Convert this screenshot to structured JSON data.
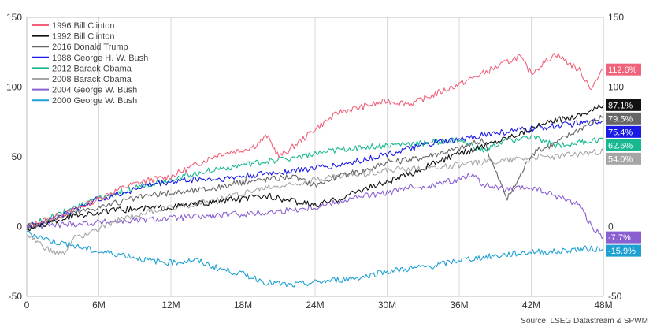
{
  "chart_data": {
    "type": "line",
    "title": "",
    "xlabel": "",
    "ylabel": "",
    "x_ticks": [
      "0",
      "6M",
      "12M",
      "18M",
      "24M",
      "30M",
      "36M",
      "42M",
      "48M"
    ],
    "xlim": [
      0,
      48
    ],
    "ylim": [
      -50,
      150
    ],
    "y_ticks": [
      -50,
      0,
      50,
      100,
      150
    ],
    "grid": "vertical",
    "legend_position": "top-left",
    "source": "Source: LSEG Datastream & SPWM",
    "series": [
      {
        "name": "1996 Bill Clinton",
        "color": "#f0627a",
        "end_label": "112.6%",
        "points": [
          [
            0,
            0
          ],
          [
            2,
            6
          ],
          [
            4,
            12
          ],
          [
            6,
            20
          ],
          [
            8,
            28
          ],
          [
            10,
            33
          ],
          [
            12,
            36
          ],
          [
            14,
            44
          ],
          [
            16,
            52
          ],
          [
            18,
            55
          ],
          [
            19,
            58
          ],
          [
            20,
            65
          ],
          [
            21,
            50
          ],
          [
            22,
            56
          ],
          [
            24,
            70
          ],
          [
            26,
            82
          ],
          [
            28,
            86
          ],
          [
            30,
            90
          ],
          [
            32,
            88
          ],
          [
            34,
            95
          ],
          [
            36,
            102
          ],
          [
            38,
            110
          ],
          [
            40,
            118
          ],
          [
            41,
            122
          ],
          [
            42,
            110
          ],
          [
            44,
            124
          ],
          [
            46,
            112
          ],
          [
            47,
            99
          ],
          [
            48,
            112.6
          ]
        ]
      },
      {
        "name": "1992 Bill Clinton",
        "color": "#111111",
        "end_label": "87.1%",
        "points": [
          [
            0,
            -2
          ],
          [
            4,
            8
          ],
          [
            8,
            12
          ],
          [
            12,
            14
          ],
          [
            16,
            18
          ],
          [
            20,
            22
          ],
          [
            24,
            15
          ],
          [
            26,
            20
          ],
          [
            28,
            27
          ],
          [
            30,
            32
          ],
          [
            32,
            38
          ],
          [
            34,
            46
          ],
          [
            36,
            52
          ],
          [
            38,
            58
          ],
          [
            40,
            64
          ],
          [
            42,
            70
          ],
          [
            44,
            76
          ],
          [
            46,
            80
          ],
          [
            48,
            87.1
          ]
        ]
      },
      {
        "name": "2016 Donald Trump",
        "color": "#666666",
        "end_label": "79.5%",
        "points": [
          [
            0,
            -1
          ],
          [
            4,
            10
          ],
          [
            8,
            18
          ],
          [
            10,
            22
          ],
          [
            12,
            24
          ],
          [
            16,
            28
          ],
          [
            18,
            32
          ],
          [
            20,
            34
          ],
          [
            22,
            36
          ],
          [
            24,
            30
          ],
          [
            26,
            36
          ],
          [
            28,
            40
          ],
          [
            30,
            46
          ],
          [
            32,
            48
          ],
          [
            34,
            52
          ],
          [
            36,
            56
          ],
          [
            38,
            62
          ],
          [
            39,
            40
          ],
          [
            40,
            20
          ],
          [
            41,
            35
          ],
          [
            42,
            52
          ],
          [
            44,
            60
          ],
          [
            46,
            70
          ],
          [
            48,
            79.5
          ]
        ]
      },
      {
        "name": "1988 George H. W. Bush",
        "color": "#1a1ae6",
        "end_label": "75.4%",
        "points": [
          [
            0,
            0
          ],
          [
            2,
            5
          ],
          [
            4,
            12
          ],
          [
            6,
            20
          ],
          [
            8,
            24
          ],
          [
            10,
            30
          ],
          [
            12,
            32
          ],
          [
            14,
            34
          ],
          [
            16,
            34
          ],
          [
            18,
            36
          ],
          [
            20,
            38
          ],
          [
            22,
            40
          ],
          [
            24,
            42
          ],
          [
            26,
            44
          ],
          [
            28,
            48
          ],
          [
            30,
            52
          ],
          [
            32,
            56
          ],
          [
            34,
            60
          ],
          [
            36,
            62
          ],
          [
            38,
            66
          ],
          [
            40,
            68
          ],
          [
            42,
            70
          ],
          [
            44,
            72
          ],
          [
            46,
            74
          ],
          [
            48,
            75.4
          ]
        ]
      },
      {
        "name": "2012 Barack Obama",
        "color": "#17b890",
        "end_label": "62.6%",
        "points": [
          [
            0,
            0
          ],
          [
            3,
            10
          ],
          [
            6,
            20
          ],
          [
            9,
            28
          ],
          [
            12,
            34
          ],
          [
            15,
            40
          ],
          [
            18,
            44
          ],
          [
            21,
            48
          ],
          [
            24,
            52
          ],
          [
            27,
            56
          ],
          [
            30,
            58
          ],
          [
            33,
            60
          ],
          [
            36,
            62
          ],
          [
            38,
            54
          ],
          [
            40,
            62
          ],
          [
            42,
            64
          ],
          [
            44,
            58
          ],
          [
            46,
            60
          ],
          [
            48,
            62.6
          ]
        ]
      },
      {
        "name": "2008 Barack Obama",
        "color": "#a6a6a6",
        "end_label": "54.0%",
        "points": [
          [
            0,
            -6
          ],
          [
            2,
            -18
          ],
          [
            3,
            -20
          ],
          [
            4,
            -8
          ],
          [
            6,
            -2
          ],
          [
            8,
            6
          ],
          [
            10,
            10
          ],
          [
            12,
            14
          ],
          [
            14,
            16
          ],
          [
            16,
            20
          ],
          [
            18,
            24
          ],
          [
            20,
            28
          ],
          [
            22,
            30
          ],
          [
            24,
            34
          ],
          [
            26,
            36
          ],
          [
            28,
            38
          ],
          [
            30,
            40
          ],
          [
            32,
            42
          ],
          [
            34,
            42
          ],
          [
            36,
            44
          ],
          [
            38,
            46
          ],
          [
            40,
            48
          ],
          [
            42,
            50
          ],
          [
            44,
            50
          ],
          [
            46,
            52
          ],
          [
            48,
            54
          ]
        ]
      },
      {
        "name": "2004 George W. Bush",
        "color": "#8a5fd1",
        "end_label": "-7.7%",
        "points": [
          [
            0,
            0
          ],
          [
            4,
            2
          ],
          [
            8,
            4
          ],
          [
            12,
            6
          ],
          [
            16,
            8
          ],
          [
            20,
            10
          ],
          [
            24,
            14
          ],
          [
            26,
            18
          ],
          [
            28,
            22
          ],
          [
            30,
            24
          ],
          [
            32,
            28
          ],
          [
            34,
            30
          ],
          [
            36,
            34
          ],
          [
            37,
            38
          ],
          [
            38,
            30
          ],
          [
            40,
            26
          ],
          [
            42,
            28
          ],
          [
            44,
            22
          ],
          [
            46,
            16
          ],
          [
            47,
            0
          ],
          [
            48,
            -7.7
          ]
        ]
      },
      {
        "name": "2000 George W. Bush",
        "color": "#1ea0d2",
        "end_label": "-15.9%",
        "points": [
          [
            0,
            -4
          ],
          [
            2,
            -10
          ],
          [
            4,
            -14
          ],
          [
            6,
            -18
          ],
          [
            8,
            -20
          ],
          [
            10,
            -24
          ],
          [
            12,
            -26
          ],
          [
            14,
            -24
          ],
          [
            16,
            -30
          ],
          [
            18,
            -34
          ],
          [
            20,
            -40
          ],
          [
            22,
            -42
          ],
          [
            24,
            -40
          ],
          [
            26,
            -38
          ],
          [
            28,
            -36
          ],
          [
            30,
            -32
          ],
          [
            32,
            -30
          ],
          [
            34,
            -28
          ],
          [
            36,
            -24
          ],
          [
            38,
            -22
          ],
          [
            40,
            -20
          ],
          [
            42,
            -18
          ],
          [
            44,
            -18
          ],
          [
            46,
            -16
          ],
          [
            48,
            -15.9
          ]
        ]
      }
    ]
  }
}
